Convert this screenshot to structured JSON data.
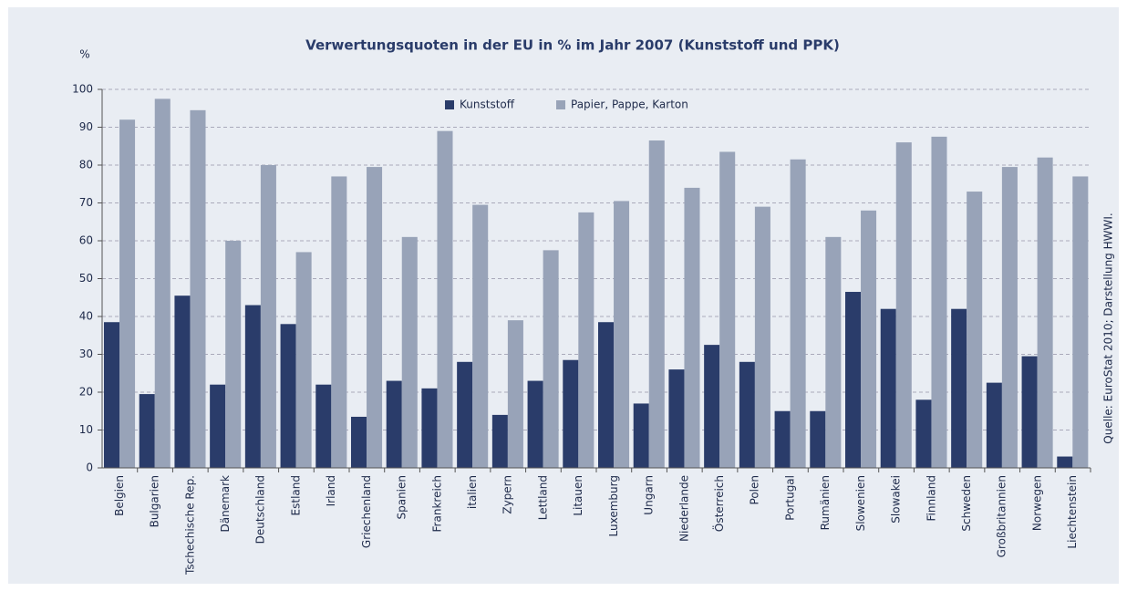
{
  "chart_data": {
    "type": "bar",
    "title": "Verwertungsquoten in der EU in % im Jahr 2007 (Kunststoff und PPK)",
    "y_label": "%",
    "source": "Quelle: EuroStat 2010; Darstellung HWWI.",
    "categories": [
      "Belgien",
      "Bulgarien",
      "Tschechische Rep.",
      "Dänemark",
      "Deutschland",
      "Estland",
      "Irland",
      "Griechenland",
      "Spanien",
      "Frankreich",
      "italien",
      "Zypern",
      "Lettland",
      "Litauen",
      "Luxemburg",
      "Ungarn",
      "Niederlande",
      "Österreich",
      "Polen",
      "Portugal",
      "Rumänien",
      "Slowenien",
      "Slowakei",
      "Finnland",
      "Schweden",
      "Großbritannien",
      "Norwegen",
      "Liechtenstein"
    ],
    "series": [
      {
        "name": "Kunststoff",
        "color": "#2a3c6a",
        "values": [
          38.5,
          19.5,
          45.5,
          22,
          43,
          38,
          22,
          13.5,
          23,
          21,
          28,
          14,
          23,
          28.5,
          38.5,
          17,
          26,
          32.5,
          28,
          15,
          15,
          46.5,
          42,
          18,
          42,
          22.5,
          29.5,
          3
        ]
      },
      {
        "name": "Papier, Pappe, Karton",
        "color": "#98a3b8",
        "values": [
          92,
          97.5,
          94.5,
          60,
          80,
          57,
          77,
          79.5,
          61,
          89,
          69.5,
          39,
          57.5,
          67.5,
          70.5,
          86.5,
          74,
          83.5,
          69,
          81.5,
          61,
          68,
          86,
          87.5,
          73,
          79.5,
          82,
          77
        ]
      }
    ],
    "ylim": [
      0,
      100
    ],
    "yticks": [
      0,
      10,
      20,
      30,
      40,
      50,
      60,
      70,
      80,
      90,
      100
    ],
    "grid": true
  }
}
